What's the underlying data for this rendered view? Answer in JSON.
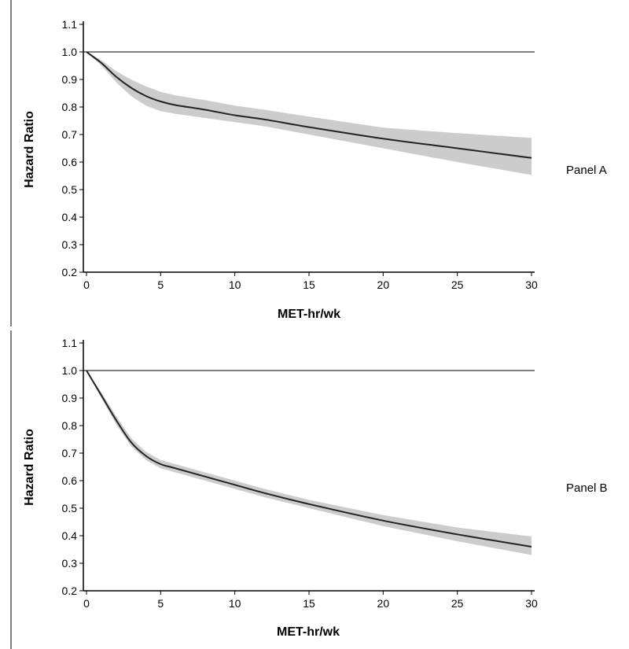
{
  "chart_data": [
    {
      "type": "line",
      "panel_label": "Panel A",
      "xlabel": "MET-hr/wk",
      "ylabel": "Hazard Ratio",
      "xlim": [
        0,
        30
      ],
      "ylim": [
        0.2,
        1.1
      ],
      "xticks": [
        0,
        5,
        10,
        15,
        20,
        25,
        30
      ],
      "yticks": [
        0.2,
        0.3,
        0.4,
        0.5,
        0.6,
        0.7,
        0.8,
        0.9,
        1.0,
        1.1
      ],
      "reference_line": 1.0,
      "grid": false,
      "band_color": "#cccccc",
      "line_color": "#222222",
      "series": [
        {
          "x": [
            0,
            1,
            2,
            3,
            4,
            5,
            6,
            8,
            10,
            12,
            15,
            20,
            25,
            30
          ],
          "y": [
            1.0,
            0.96,
            0.91,
            0.87,
            0.84,
            0.82,
            0.807,
            0.79,
            0.77,
            0.755,
            0.727,
            0.685,
            0.65,
            0.615
          ],
          "lower": [
            1.0,
            0.95,
            0.89,
            0.84,
            0.805,
            0.785,
            0.775,
            0.76,
            0.745,
            0.73,
            0.7,
            0.65,
            0.6,
            0.553
          ],
          "upper": [
            1.0,
            0.97,
            0.93,
            0.9,
            0.875,
            0.855,
            0.842,
            0.825,
            0.805,
            0.79,
            0.765,
            0.725,
            0.705,
            0.688
          ]
        }
      ]
    },
    {
      "type": "line",
      "panel_label": "Panel B",
      "xlabel": "MET-hr/wk",
      "ylabel": "Hazard Ratio",
      "xlim": [
        0,
        30
      ],
      "ylim": [
        0.2,
        1.1
      ],
      "xticks": [
        0,
        5,
        10,
        15,
        20,
        25,
        30
      ],
      "yticks": [
        0.2,
        0.3,
        0.4,
        0.5,
        0.6,
        0.7,
        0.8,
        0.9,
        1.0,
        1.1
      ],
      "reference_line": 1.0,
      "grid": false,
      "band_color": "#cccccc",
      "line_color": "#222222",
      "series": [
        {
          "x": [
            0,
            1,
            2,
            3,
            4,
            5,
            6,
            8,
            10,
            12,
            15,
            20,
            25,
            30
          ],
          "y": [
            1.0,
            0.91,
            0.82,
            0.74,
            0.69,
            0.66,
            0.645,
            0.615,
            0.585,
            0.555,
            0.515,
            0.455,
            0.405,
            0.36
          ],
          "lower": [
            1.0,
            0.9,
            0.805,
            0.725,
            0.675,
            0.645,
            0.63,
            0.6,
            0.57,
            0.54,
            0.5,
            0.435,
            0.38,
            0.33
          ],
          "upper": [
            1.0,
            0.92,
            0.835,
            0.755,
            0.705,
            0.675,
            0.66,
            0.63,
            0.6,
            0.57,
            0.53,
            0.475,
            0.43,
            0.397
          ]
        }
      ]
    }
  ]
}
